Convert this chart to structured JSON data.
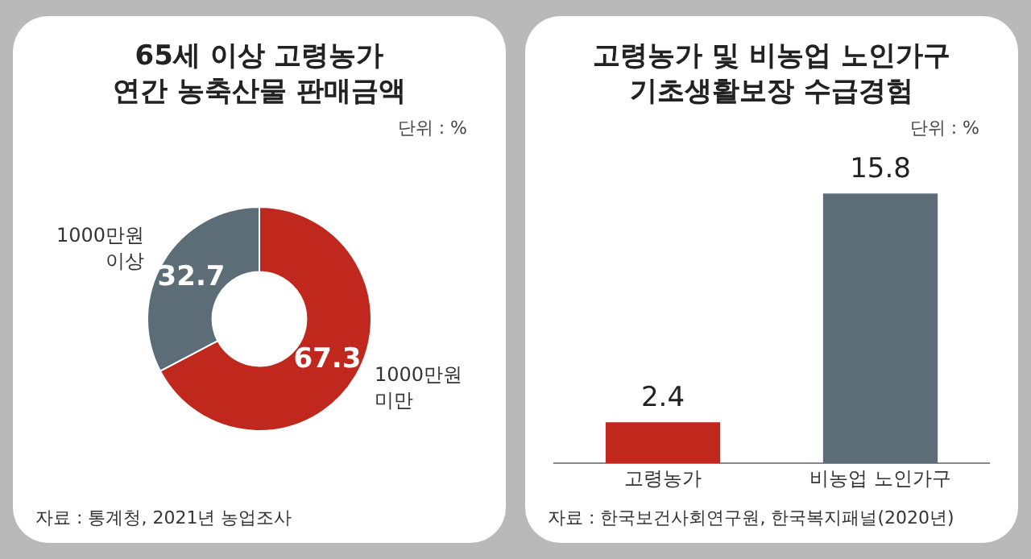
{
  "chart_data": [
    {
      "type": "donut",
      "title": "65세 이상 고령농가\n연간 농축산물 판매금액",
      "categories": [
        "1000만원 미만",
        "1000만원 이상"
      ],
      "values": [
        67.3,
        32.7
      ],
      "colors": [
        "#c0281e",
        "#5d6d78"
      ],
      "data_labels": true,
      "legend": false,
      "annotations": [
        "단위 : %",
        "자료 : 통계청, 2021년 농업조사"
      ]
    },
    {
      "type": "bar",
      "title": "고령농가 및 비농업 노인가구\n기초생활보장 수급경험",
      "categories": [
        "고령농가",
        "비농업 노인가구"
      ],
      "values": [
        2.4,
        15.8
      ],
      "colors": [
        "#c0281e",
        "#5d6d78"
      ],
      "data_labels": true,
      "legend": false,
      "grid": false,
      "tick_labels": "x",
      "annotations": [
        "단위 : %",
        "자료 : 한국보건사회연구원, 한국복지패널(2020년)"
      ]
    }
  ]
}
